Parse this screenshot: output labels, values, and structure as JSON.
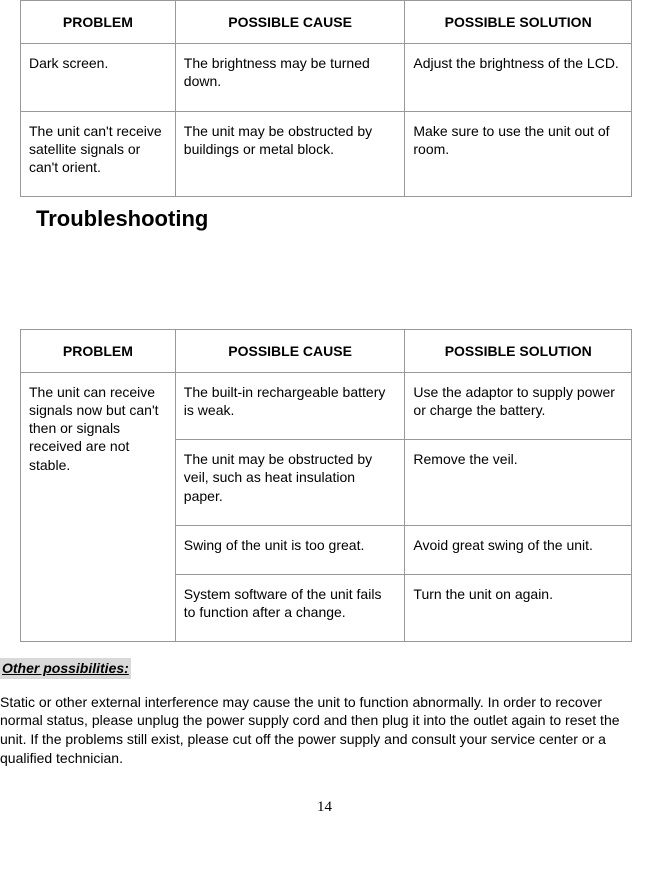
{
  "table1": {
    "headers": [
      "PROBLEM",
      "POSSIBLE CAUSE",
      "POSSIBLE SOLUTION"
    ],
    "rows": [
      {
        "problem": "Dark screen.",
        "cause": "The brightness may be turned down.",
        "solution": "Adjust the brightness of the LCD."
      },
      {
        "problem": "The unit can't receive satellite signals or can't orient.",
        "cause": "The unit may be obstructed by buildings or metal block.",
        "solution": "Make sure to use the unit out of room."
      }
    ]
  },
  "heading": "Troubleshooting",
  "table2": {
    "headers": [
      "PROBLEM",
      "POSSIBLE CAUSE",
      "POSSIBLE SOLUTION"
    ],
    "problem": "The unit can receive signals now but can't then or signals received are not stable.",
    "rows": [
      {
        "cause": "The built-in rechargeable battery is weak.",
        "solution": "Use the adaptor to supply power or charge the battery."
      },
      {
        "cause": "The unit may be obstructed by veil, such as heat insulation paper.",
        "solution": "Remove the veil."
      },
      {
        "cause": "Swing of the unit is too great.",
        "solution": "Avoid great swing of the unit."
      },
      {
        "cause": "System software of the unit fails to function after a change.",
        "solution": "Turn the unit on again."
      }
    ]
  },
  "other": {
    "title": "Other possibilities:",
    "text": "Static or other external interference may cause the unit to function abnormally. In order to recover normal status, please unplug the power supply cord and then plug it into the outlet again to reset the unit. If the problems still exist, please cut off the power supply and consult your service center or a qualified technician."
  },
  "pageNumber": "14"
}
